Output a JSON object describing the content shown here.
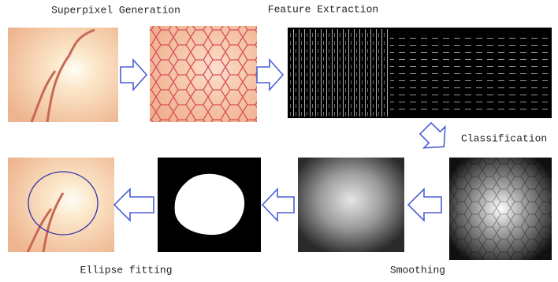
{
  "labels": {
    "superpixel": "Superpixel Generation",
    "feature": "Feature Extraction",
    "classification": "Classification",
    "smoothing": "Smoothing",
    "ellipse": "Ellipse fitting"
  }
}
